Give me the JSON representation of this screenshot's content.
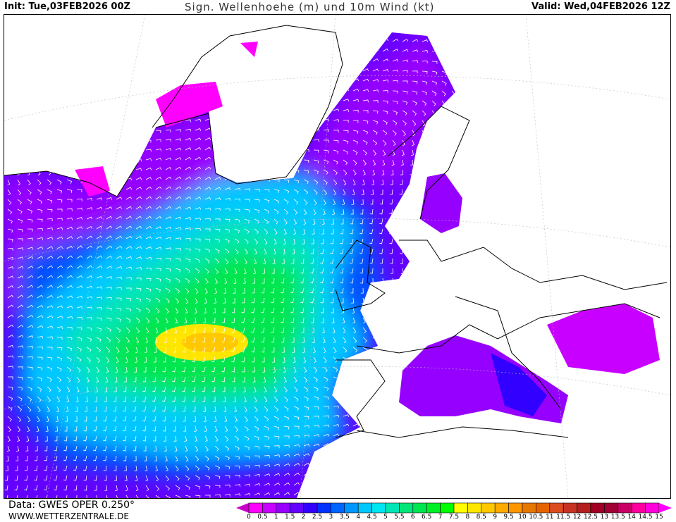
{
  "header": {
    "init": "Init: Tue,03FEB2026 00Z",
    "title": "Sign. Wellenhoehe (m) und 10m Wind (kt)",
    "valid": "Valid: Wed,04FEB2026 12Z"
  },
  "footer": {
    "data_source": "Data: GWES OPER 0.250°",
    "website": "WWW.WETTERZENTRALE.DE"
  },
  "map": {
    "variable": "significant wave height",
    "unit": "m",
    "overlay": "10m wind barbs (kt)",
    "max_region": "central North Atlantic, 7.5-8 m"
  },
  "legend": {
    "ticks": [
      "0",
      "0.5",
      "1",
      "1.5",
      "2",
      "2.5",
      "3",
      "3.5",
      "4",
      "4.5",
      "5",
      "5.5",
      "6",
      "6.5",
      "7",
      "7.5",
      "8",
      "8.5",
      "9",
      "9.5",
      "10",
      "10.5",
      "11",
      "11.5",
      "12",
      "12.5",
      "13",
      "13.5",
      "14",
      "14.5",
      "15"
    ],
    "colors": [
      "#ff00ff",
      "#c800ff",
      "#9600ff",
      "#6400ff",
      "#3200ff",
      "#0032ff",
      "#0064ff",
      "#0096ff",
      "#00c8ff",
      "#00e6f0",
      "#00e6b4",
      "#00e678",
      "#00e650",
      "#00f028",
      "#00ff00",
      "#ffff00",
      "#ffe600",
      "#ffc800",
      "#ffaa00",
      "#ff9600",
      "#e67800",
      "#e66400",
      "#dc4b1e",
      "#c83223",
      "#b41e1e",
      "#a00023",
      "#a00032",
      "#c80064",
      "#ff00a0",
      "#ff00dc"
    ],
    "under_color": "#c800c8",
    "over_color": "#ff00ff"
  }
}
